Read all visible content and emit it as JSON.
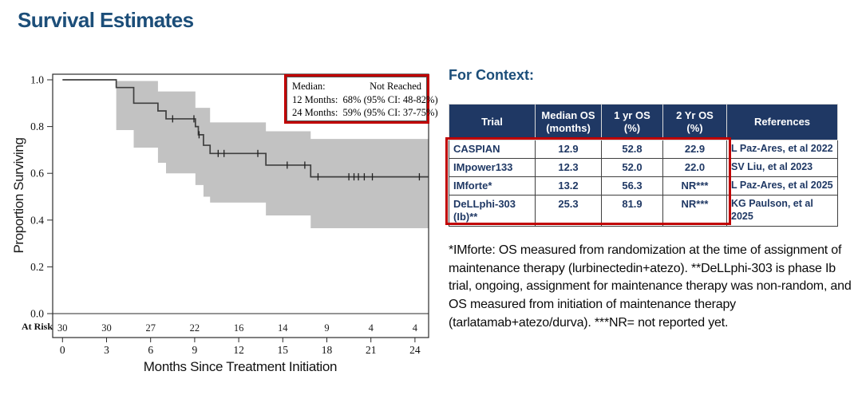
{
  "page": {
    "title": "Survival Estimates"
  },
  "chart": {
    "y_axis_label": "Proportion Surviving",
    "x_axis_label": "Months Since Treatment Initiation",
    "at_risk_label": "At Risk",
    "annotation": {
      "median_label": "Median:",
      "median_value": "Not Reached",
      "months12": "12 Months:  68% (95% CI: 48-82%)",
      "months24": "24 Months:  59% (95% CI: 37-75%)"
    }
  },
  "chart_data": {
    "type": "line",
    "subtype": "kaplan-meier-step",
    "title": "Survival Estimates",
    "xlabel": "Months Since Treatment Initiation",
    "ylabel": "Proportion Surviving",
    "xlim": [
      0,
      24
    ],
    "ylim": [
      0,
      1
    ],
    "grid": false,
    "x_ticks": [
      0,
      3,
      6,
      9,
      12,
      15,
      18,
      21,
      24
    ],
    "y_ticks": [
      0,
      0.2,
      0.4,
      0.6,
      0.8,
      1.0
    ],
    "median_survival": "Not Reached",
    "survival_12mo": {
      "estimate_pct": 68,
      "ci95_pct": [
        48,
        82
      ]
    },
    "survival_24mo": {
      "estimate_pct": 59,
      "ci95_pct": [
        37,
        75
      ]
    },
    "at_risk": {
      "times": [
        0,
        3,
        6,
        9,
        12,
        15,
        18,
        21,
        24
      ],
      "counts": [
        30,
        30,
        27,
        22,
        16,
        14,
        9,
        4,
        4
      ]
    },
    "km_steps": [
      [
        0,
        1.0
      ],
      [
        3.66,
        0.967
      ],
      [
        4.85,
        0.9
      ],
      [
        6.5,
        0.867
      ],
      [
        7.05,
        0.833
      ],
      [
        9.05,
        0.8
      ],
      [
        9.25,
        0.765
      ],
      [
        9.6,
        0.72
      ],
      [
        10.05,
        0.685
      ],
      [
        13.85,
        0.635
      ],
      [
        16.9,
        0.585
      ]
    ],
    "curve_end_time": 24.9,
    "censors": [
      [
        7.5,
        0.833
      ],
      [
        8.95,
        0.833
      ],
      [
        9.3,
        0.765
      ],
      [
        10.6,
        0.685
      ],
      [
        11.0,
        0.685
      ],
      [
        13.3,
        0.685
      ],
      [
        15.3,
        0.635
      ],
      [
        16.5,
        0.635
      ],
      [
        17.4,
        0.585
      ],
      [
        19.5,
        0.585
      ],
      [
        19.85,
        0.585
      ],
      [
        20.15,
        0.585
      ],
      [
        20.55,
        0.585
      ],
      [
        21.1,
        0.585
      ],
      [
        24.3,
        0.585
      ]
    ],
    "ci_band": [
      {
        "t0": 3.66,
        "t1": 4.85,
        "lo": 0.785,
        "hi": 0.995
      },
      {
        "t0": 4.85,
        "t1": 6.5,
        "lo": 0.71,
        "hi": 0.995
      },
      {
        "t0": 6.5,
        "t1": 7.05,
        "lo": 0.645,
        "hi": 0.95
      },
      {
        "t0": 7.05,
        "t1": 9.05,
        "lo": 0.6,
        "hi": 0.95
      },
      {
        "t0": 9.05,
        "t1": 9.6,
        "lo": 0.55,
        "hi": 0.88
      },
      {
        "t0": 9.6,
        "t1": 10.05,
        "lo": 0.5,
        "hi": 0.88
      },
      {
        "t0": 10.05,
        "t1": 13.85,
        "lo": 0.475,
        "hi": 0.818
      },
      {
        "t0": 13.85,
        "t1": 16.9,
        "lo": 0.42,
        "hi": 0.78
      },
      {
        "t0": 16.9,
        "t1": 24.9,
        "lo": 0.365,
        "hi": 0.747
      }
    ]
  },
  "context": {
    "heading": "For Context:",
    "table": {
      "headers": [
        "Trial",
        "Median OS\n(months)",
        "1 yr OS\n(%)",
        "2 Yr OS\n(%)",
        "References"
      ],
      "rows": [
        [
          "CASPIAN",
          "12.9",
          "52.8",
          "22.9",
          "L Paz-Ares, et al 2022"
        ],
        [
          "IMpower133",
          "12.3",
          "52.0",
          "22.0",
          "SV Liu, et al 2023"
        ],
        [
          "IMforte*",
          "13.2",
          "56.3",
          "NR***",
          "L Paz-Ares, et al 2025"
        ],
        [
          "DeLLphi-303\n(Ib)**",
          "25.3",
          "81.9",
          "NR***",
          "KG Paulson, et al 2025"
        ]
      ]
    },
    "footnote": "*IMforte: OS measured from randomization at the time of assignment of maintenance therapy (lurbinectedin+atezo). **DeLLphi-303 is phase Ib trial, ongoing, assignment for maintenance therapy was non-random, and OS measured from initiation of maintenance therapy (tarlatamab+atezo/durva). ***NR= not reported yet."
  },
  "colors": {
    "accent_blue": "#1C4E79",
    "table_header_bg": "#1F3864",
    "table_text": "#1F3864",
    "highlight_red": "#C00000",
    "ci_band_gray": "#C2C2C2",
    "curve_gray": "#3F3F3F"
  }
}
